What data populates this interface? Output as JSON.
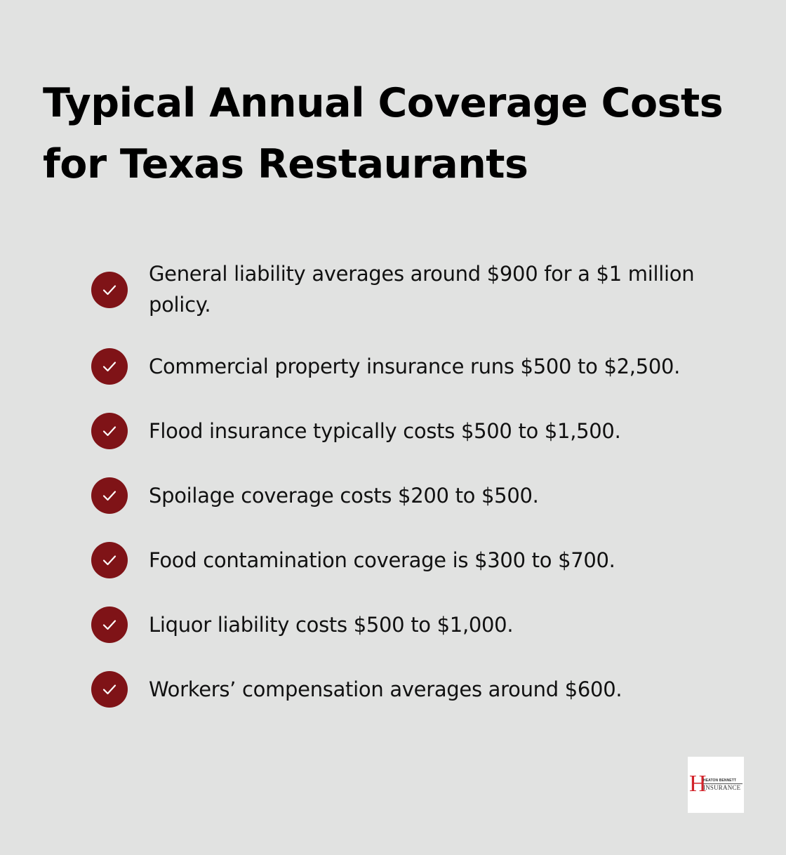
{
  "title": "Typical Annual Coverage Costs for Texas Restaurants",
  "items": [
    {
      "text": "General liability averages around $900 for a $1 million policy.",
      "icon": "check-icon"
    },
    {
      "text": "Commercial property insurance runs $500 to $2,500.",
      "icon": "check-icon"
    },
    {
      "text": "Flood insurance typically costs $500 to $1,500.",
      "icon": "check-icon"
    },
    {
      "text": "Spoilage coverage costs $200 to $500.",
      "icon": "check-icon"
    },
    {
      "text": "Food contamination coverage is $300 to $700.",
      "icon": "check-icon"
    },
    {
      "text": "Liquor liability costs $500 to $1,000.",
      "icon": "check-icon"
    },
    {
      "text": "Workers’ compensation averages around $600.",
      "icon": "check-icon"
    }
  ],
  "logo": {
    "letter": "H",
    "line1": "HEATON BENNETT",
    "line2": "INSURANCE"
  },
  "colors": {
    "background": "#e1e2e1",
    "accent": "#7f1317",
    "logo_red": "#d2232a"
  }
}
